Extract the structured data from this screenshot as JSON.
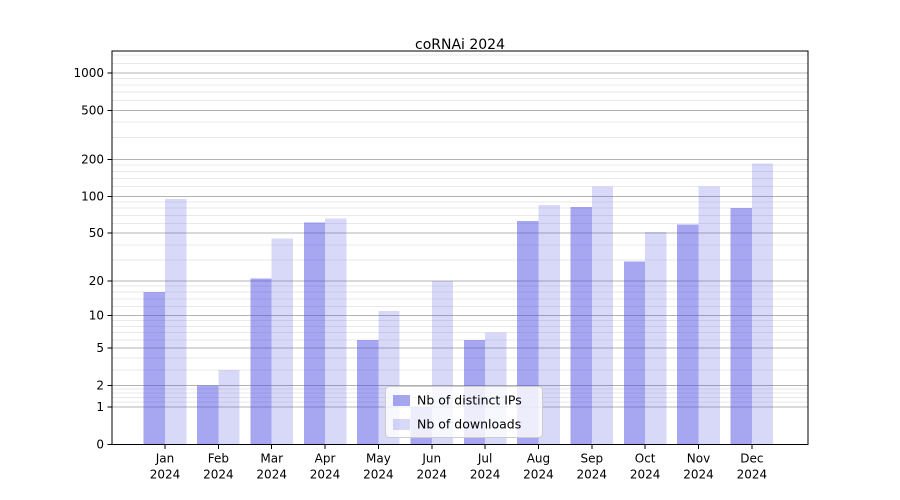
{
  "page": {
    "background": "#ffffff"
  },
  "chart_data": {
    "type": "bar",
    "title": "coRNAi 2024",
    "categories": [
      "Jan",
      "Feb",
      "Mar",
      "Apr",
      "May",
      "Jun",
      "Jul",
      "Aug",
      "Sep",
      "Oct",
      "Nov",
      "Dec"
    ],
    "year_label": "2024",
    "series": [
      {
        "name": "Nb of distinct IPs",
        "color": "#a6a6f1",
        "values": [
          16,
          2,
          21,
          61,
          6,
          1,
          6,
          63,
          82,
          29,
          59,
          80
        ]
      },
      {
        "name": "Nb of downloads",
        "color": "#d8d8f7",
        "values": [
          95,
          3,
          45,
          66,
          11,
          20,
          7,
          85,
          120,
          51,
          120,
          186
        ]
      }
    ],
    "scale": "log1p",
    "ylim": [
      0,
      1508
    ],
    "yticks": [
      1000,
      500,
      200,
      100,
      50,
      20,
      10,
      5,
      2,
      1,
      0
    ],
    "minor_yticks": [
      1.2,
      1.4,
      1.6,
      1.8,
      3,
      4,
      6,
      7,
      8,
      9,
      12,
      14,
      16,
      18,
      30,
      40,
      60,
      70,
      80,
      90,
      120,
      140,
      160,
      180,
      300,
      400,
      600,
      700,
      800,
      900,
      1200,
      1400
    ],
    "grid": true,
    "legend_position": "lower center inside",
    "colors": {
      "bar_base": "#4d4de3",
      "bar_alpha_ips": 0.5,
      "bar_alpha_downloads": 0.22,
      "major_grid": "#b3b3b3",
      "minor_grid": "#e9e9e9",
      "axis": "#000000",
      "legend_border": "#cccccc",
      "legend_bg": "#ffffff"
    }
  }
}
